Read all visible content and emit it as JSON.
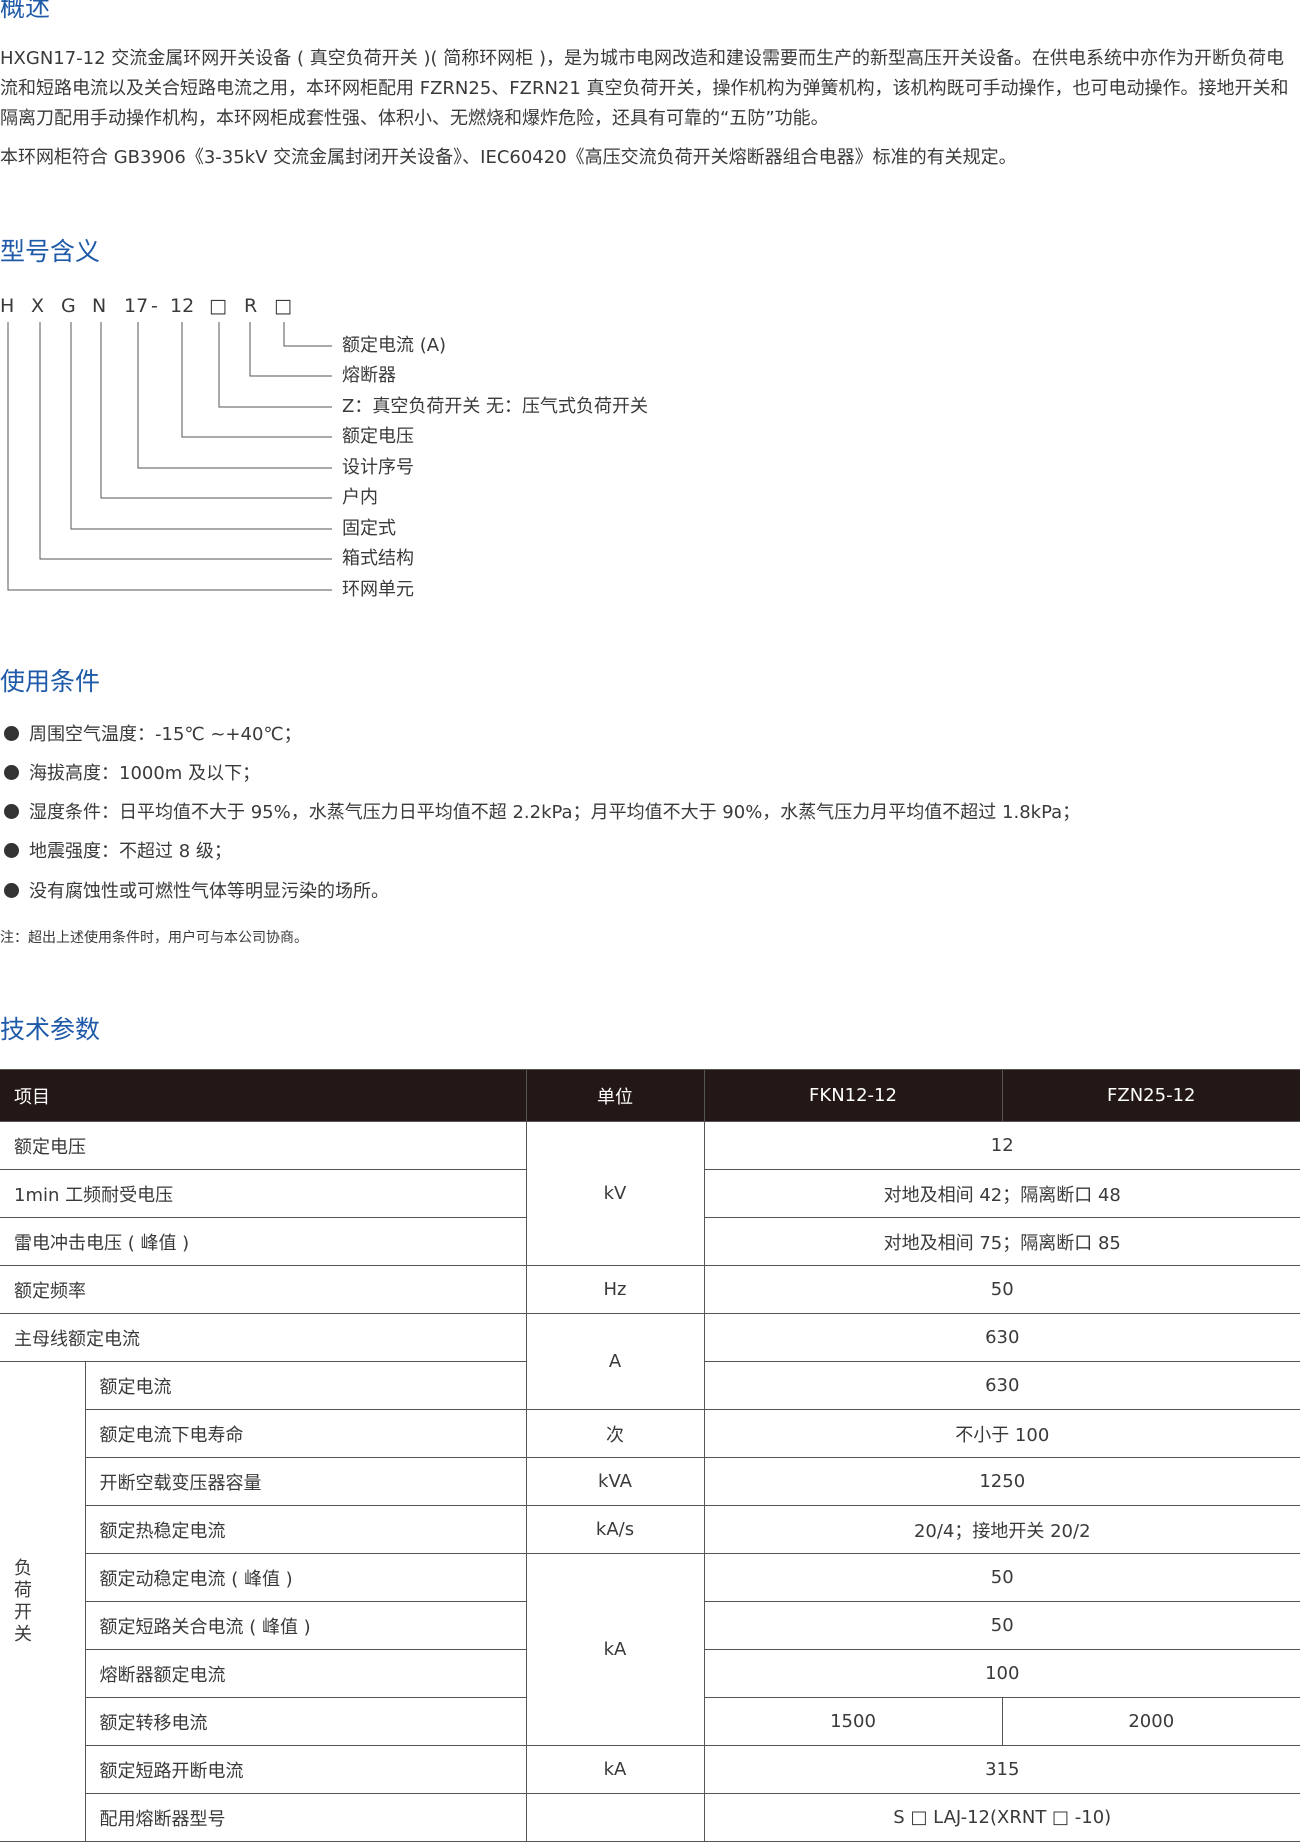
{
  "overview": {
    "title": "概述",
    "para1": "HXGN17-12 交流金属环网开关设备 ( 真空负荷开关 )( 简称环网柜 )，是为城市电网改造和建设需要而生产的新型高压开关设备。在供电系统中亦作为开断负荷电流和短路电流以及关合短路电流之用，本环网柜配用 FZRN25、FZRN21 真空负荷开关，操作机构为弹簧机构，该机构既可手动操作，也可电动操作。接地开关和隔离刀配用手动操作机构，本环网柜成套性强、体积小、无燃烧和爆炸危险，还具有可靠的“五防”功能。",
    "para2": "本环网柜符合 GB3906《3-35kV 交流金属封闭开关设备》、IEC60420《高压交流负荷开关熔断器组合电器》标准的有关规定。"
  },
  "model": {
    "title": "型号含义",
    "code_parts": [
      "H",
      "X",
      "G",
      "N",
      "17",
      "-",
      "12",
      "□",
      "R",
      "□"
    ],
    "labels": [
      "额定电流 (A)",
      "熔断器",
      "Z：真空负荷开关 无：压气式负荷开关",
      "额定电压",
      "设计序号",
      "户内",
      "固定式",
      "箱式结构",
      "环网单元"
    ]
  },
  "conditions": {
    "title": "使用条件",
    "items": [
      "周围空气温度：-15℃ ~+40℃；",
      "海拔高度：1000m 及以下；",
      "湿度条件：日平均值不大于 95%，水蒸气压力日平均值不超 2.2kPa；月平均值不大于 90%，水蒸气压力月平均值不超过 1.8kPa；",
      "地震强度：不超过 8 级；",
      "没有腐蚀性或可燃性气体等明显污染的场所。"
    ],
    "note": "注：超出上述使用条件时，用户可与本公司协商。"
  },
  "params": {
    "title": "技术参数",
    "headers": [
      "项目",
      "单位",
      "FKN12-12",
      "FZN25-12"
    ],
    "group_label": "负荷开关",
    "rows": [
      {
        "item": "额定电压",
        "unit": "kV",
        "value": "12"
      },
      {
        "item": "1min 工频耐受电压",
        "value": "对地及相间 42；隔离断口 48"
      },
      {
        "item": "雷电冲击电压 ( 峰值 )",
        "value": "对地及相间 75；隔离断口 85"
      },
      {
        "item": "额定频率",
        "unit": "Hz",
        "value": "50"
      },
      {
        "item": "主母线额定电流",
        "unit": "A",
        "value": "630"
      },
      {
        "item": "额定电流",
        "value": "630"
      },
      {
        "item": "额定电流下电寿命",
        "unit": "次",
        "value": "不小于 100"
      },
      {
        "item": "开断空载变压器容量",
        "unit": "kVA",
        "value": "1250"
      },
      {
        "item": "额定热稳定电流",
        "unit": "kA/s",
        "value": "20/4；接地开关 20/2"
      },
      {
        "item": "额定动稳定电流 ( 峰值 )",
        "unit": "kA",
        "value": "50"
      },
      {
        "item": "额定短路关合电流 ( 峰值 )",
        "value": "50"
      },
      {
        "item": "熔断器额定电流",
        "value": "100"
      },
      {
        "item": "额定转移电流",
        "value_a": "1500",
        "value_b": "2000"
      },
      {
        "item": "额定短路开断电流",
        "unit": "kA",
        "value": "315"
      },
      {
        "item": "配用熔断器型号",
        "value": "S □ LAJ-12(XRNT □ -10)"
      }
    ]
  }
}
